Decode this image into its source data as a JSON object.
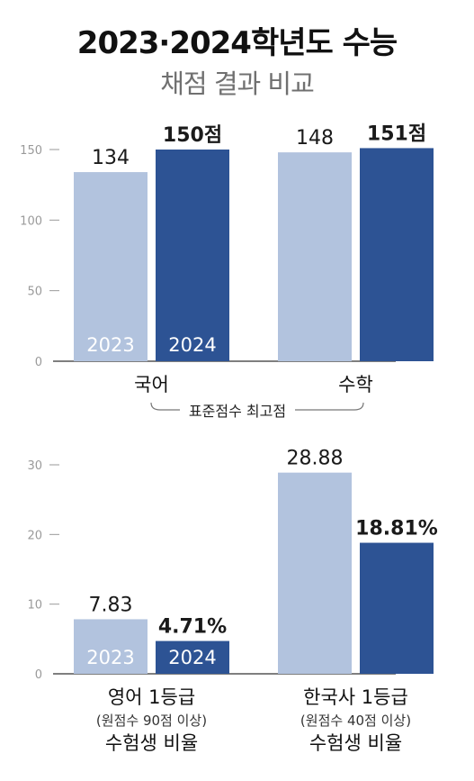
{
  "title": "2023·2024학년도 수능",
  "subtitle": "채점 결과 비교",
  "colors": {
    "y2023": "#b2c3de",
    "y2024": "#2d5394",
    "axis": "#555555",
    "tick": "#9a9a9a"
  },
  "chart_data": [
    {
      "type": "bar",
      "categories": [
        "국어",
        "수학"
      ],
      "series": [
        {
          "name": "2023",
          "values": [
            134,
            148
          ]
        },
        {
          "name": "2024",
          "values": [
            150,
            151
          ]
        }
      ],
      "value_labels": [
        [
          "134",
          "148"
        ],
        [
          "150점",
          "151점"
        ]
      ],
      "yticks": [
        "0",
        "50",
        "100",
        "150"
      ],
      "ylim": [
        0,
        150
      ],
      "group_label": "표준점수 최고점"
    },
    {
      "type": "bar",
      "categories": [
        "영어 1등급",
        "한국사 1등급"
      ],
      "category_notes": [
        "(원점수 90점 이상)",
        "(원점수 40점 이상)"
      ],
      "category_footer": "수험생 비율",
      "series": [
        {
          "name": "2023",
          "values": [
            7.83,
            28.88
          ]
        },
        {
          "name": "2024",
          "values": [
            4.71,
            18.81
          ]
        }
      ],
      "value_labels": [
        [
          "7.83",
          "28.88"
        ],
        [
          "4.71%",
          "18.81%"
        ]
      ],
      "yticks": [
        "0",
        "10",
        "20",
        "30"
      ],
      "ylim": [
        0,
        30
      ]
    }
  ]
}
